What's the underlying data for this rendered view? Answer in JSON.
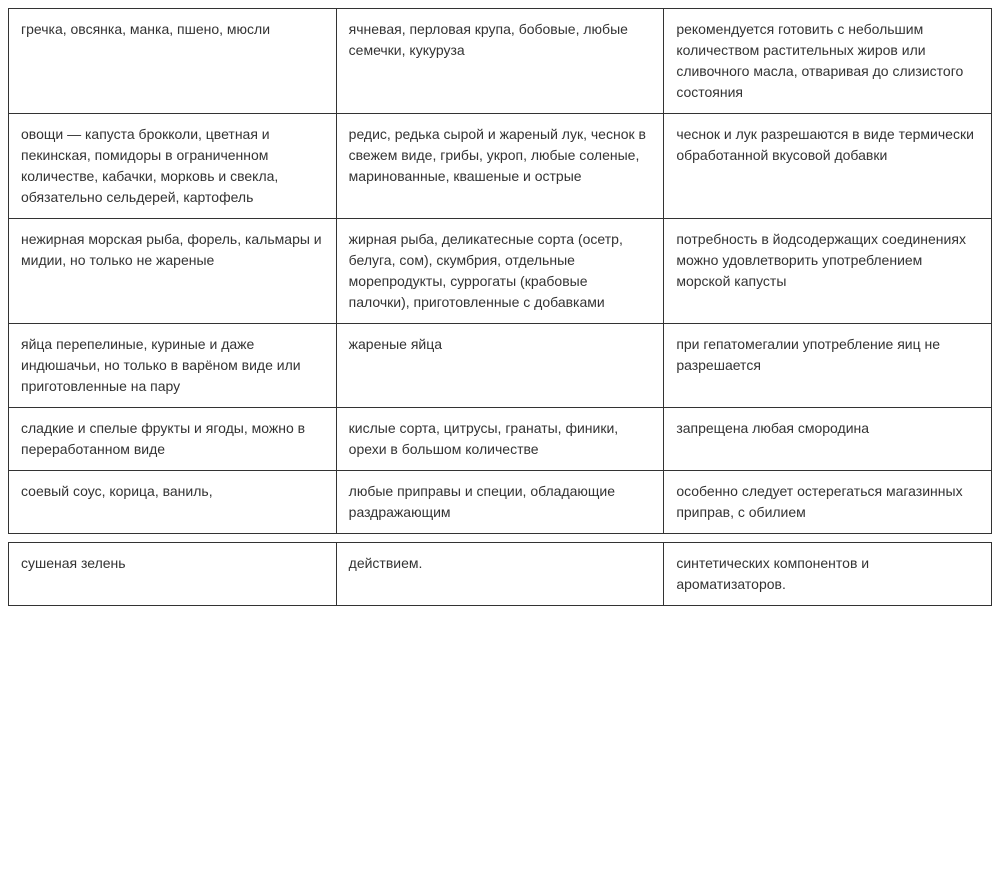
{
  "diet_table": {
    "type": "table",
    "border_color": "#333333",
    "text_color": "#333333",
    "background_color": "#ffffff",
    "font_family": "Verdana, Arial, sans-serif",
    "font_size": 14,
    "line_height": 1.5,
    "column_count": 3,
    "cell_padding": "10px 12px",
    "rows_main": [
      {
        "col1": "гречка, овсянка, манка, пшено, мюсли",
        "col2": "ячневая, перловая крупа, бобовые, любые семечки, кукуруза",
        "col3": "рекомендуется готовить с небольшим количеством растительных жиров или сливочного масла, отваривая до слизистого состояния"
      },
      {
        "col1": "овощи — капуста брокколи, цветная и пекинская, помидоры в ограниченном количестве, кабачки, морковь и свекла, обязательно сельдерей, картофель",
        "col2": "редис, редька сырой и жареный лук, чеснок в свежем виде, грибы, укроп, любые соленые, маринованные, квашеные и острые",
        "col3": "чеснок и лук разрешаются в виде термически обработанной вкусовой добавки"
      },
      {
        "col1": "нежирная морская рыба, форель, кальмары и мидии, но только не жареные",
        "col2": "жирная рыба, деликатесные сорта (осетр, белуга, сом), скумбрия, отдельные морепродукты, суррогаты (крабовые палочки), приготовленные с добавками",
        "col3": "потребность в йодсодержащих соединениях можно удовлетворить употреблением морской капусты"
      },
      {
        "col1": "яйца перепелиные, куриные и даже индюшачьи, но только в варёном виде или приготовленные на пару",
        "col2": "жареные яйца",
        "col3": "при гепатомегалии употребление яиц не разрешается"
      },
      {
        "col1": "сладкие и спелые фрукты и ягоды, можно в переработанном виде",
        "col2": "кислые сорта, цитрусы, гранаты, финики, орехи в большом количестве",
        "col3": "запрещена любая смородина"
      },
      {
        "col1": "соевый соус, корица, ваниль,",
        "col2": "любые приправы и специи, обладающие раздражающим",
        "col3": "особенно следует остерегаться магазинных приправ, с обилием"
      }
    ],
    "rows_second": [
      {
        "col1": "сушеная зелень",
        "col2": "действием.",
        "col3": "синтетических компонентов и ароматизаторов."
      }
    ]
  }
}
